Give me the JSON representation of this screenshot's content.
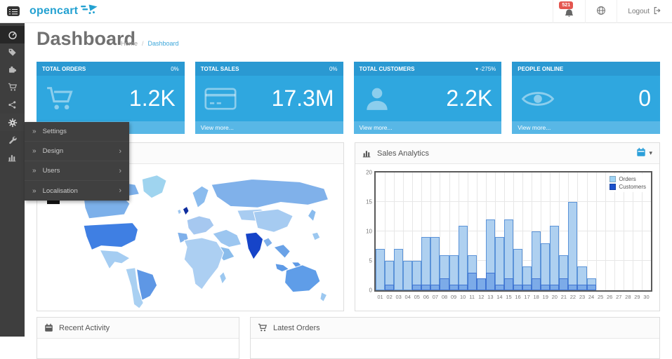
{
  "header": {
    "logo_text": "opencart",
    "notification_badge": "521",
    "logout_label": "Logout"
  },
  "page": {
    "title": "Dashboard",
    "breadcrumb_home": "Home",
    "breadcrumb_sep": "/",
    "breadcrumb_current": "Dashboard"
  },
  "sidebar": {
    "items": [
      {
        "name": "dashboard",
        "icon": "tachometer-icon",
        "active": true
      },
      {
        "name": "catalog",
        "icon": "tag-icon"
      },
      {
        "name": "extensions",
        "icon": "puzzle-icon"
      },
      {
        "name": "sales",
        "icon": "cart-icon"
      },
      {
        "name": "marketing",
        "icon": "share-icon"
      },
      {
        "name": "system",
        "icon": "gear-icon",
        "expanded": true
      },
      {
        "name": "tools",
        "icon": "wrench-icon"
      },
      {
        "name": "reports",
        "icon": "bar-chart-icon"
      }
    ]
  },
  "system_menu": {
    "items": [
      {
        "label": "Settings",
        "has_children": false
      },
      {
        "label": "Design",
        "has_children": true
      },
      {
        "label": "Users",
        "has_children": true
      },
      {
        "label": "Localisation",
        "has_children": true
      }
    ]
  },
  "tiles": [
    {
      "key": "total-orders",
      "title": "TOTAL ORDERS",
      "change": "0%",
      "change_direction": "none",
      "value": "1.2K",
      "footer": "View more...",
      "icon": "cart-large-icon"
    },
    {
      "key": "total-sales",
      "title": "TOTAL SALES",
      "change": "0%",
      "change_direction": "none",
      "value": "17.3M",
      "footer": "View more...",
      "icon": "credit-card-icon"
    },
    {
      "key": "total-customers",
      "title": "TOTAL CUSTOMERS",
      "change": "-275%",
      "change_direction": "down",
      "value": "2.2K",
      "footer": "View more...",
      "icon": "user-icon"
    },
    {
      "key": "people-online",
      "title": "PEOPLE ONLINE",
      "change": "",
      "change_direction": "none",
      "value": "0",
      "footer": "View more...",
      "icon": "eye-icon"
    }
  ],
  "panels": {
    "sales_analytics": {
      "title": "Sales Analytics"
    },
    "recent_activity": {
      "title": "Recent Activity"
    },
    "latest_orders": {
      "title": "Latest Orders"
    }
  },
  "chart_data": {
    "type": "bar",
    "title": "Sales Analytics",
    "categories": [
      "01",
      "02",
      "03",
      "04",
      "05",
      "06",
      "07",
      "08",
      "09",
      "10",
      "11",
      "12",
      "13",
      "14",
      "15",
      "16",
      "17",
      "18",
      "19",
      "20",
      "21",
      "22",
      "23",
      "24",
      "25",
      "26",
      "27",
      "28",
      "29",
      "30"
    ],
    "series": [
      {
        "name": "Orders",
        "values": [
          7,
          5,
          7,
          5,
          5,
          9,
          9,
          6,
          6,
          11,
          6,
          2,
          12,
          9,
          12,
          7,
          4,
          10,
          8,
          11,
          6,
          15,
          4,
          2,
          0,
          0,
          0,
          0,
          0,
          0
        ]
      },
      {
        "name": "Customers",
        "values": [
          0,
          1,
          0,
          0,
          1,
          1,
          1,
          2,
          1,
          1,
          3,
          2,
          3,
          1,
          2,
          1,
          1,
          2,
          1,
          1,
          2,
          1,
          1,
          1,
          0,
          0,
          0,
          0,
          0,
          0
        ]
      }
    ],
    "xlabel": "",
    "ylabel": "",
    "ylim": [
      0,
      20
    ],
    "yticks": [
      0,
      5,
      10,
      15,
      20
    ],
    "grid": true,
    "legend_position": "top-right"
  },
  "colors": {
    "accent_blue": "#23a1d1",
    "badge_red": "#e4564f",
    "tile_header": "#2a99d2",
    "tile_body": "#2fa7df",
    "tile_footer": "#58b7e6",
    "orders_fill": "#aed0f0",
    "orders_border": "#5b93d8",
    "customers_fill": "#7cabe8",
    "customers_border": "#3f74d2",
    "legend_orders": "#9fd4f5",
    "legend_customers": "#1b51cc"
  }
}
